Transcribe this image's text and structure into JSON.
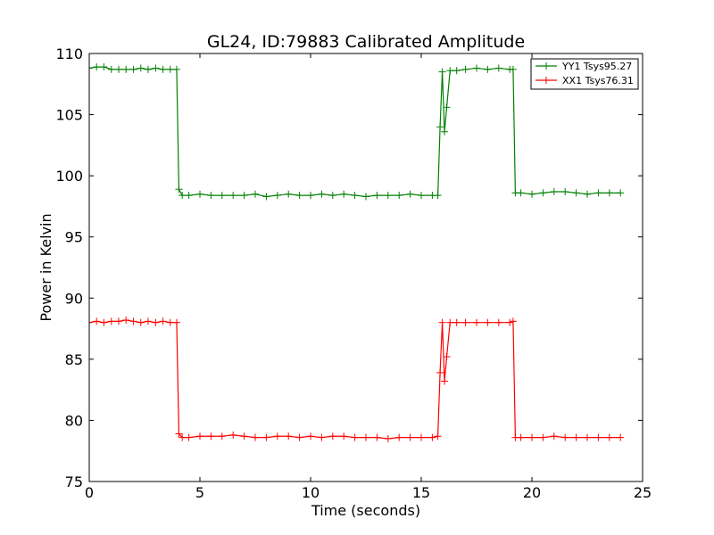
{
  "chart_data": {
    "type": "line",
    "title": "GL24, ID:79883 Calibrated Amplitude",
    "xlabel": "Time (seconds)",
    "ylabel": "Power in Kelvin",
    "xlim": [
      0,
      25
    ],
    "ylim": [
      75,
      110
    ],
    "xticks": [
      "0",
      "5",
      "10",
      "15",
      "20",
      "25"
    ],
    "yticks": [
      "75",
      "80",
      "85",
      "90",
      "95",
      "100",
      "105",
      "110"
    ],
    "grid": false,
    "legend_position": "top-right",
    "series": [
      {
        "name": "YY1 Tsys95.27",
        "color": "#008000",
        "marker": "+",
        "points": [
          [
            0.0,
            108.8
          ],
          [
            0.33,
            108.9
          ],
          [
            0.66,
            108.9
          ],
          [
            1.0,
            108.7
          ],
          [
            1.33,
            108.7
          ],
          [
            1.66,
            108.7
          ],
          [
            2.0,
            108.7
          ],
          [
            2.33,
            108.8
          ],
          [
            2.66,
            108.7
          ],
          [
            3.0,
            108.8
          ],
          [
            3.33,
            108.7
          ],
          [
            3.66,
            108.7
          ],
          [
            3.95,
            108.7
          ],
          [
            4.05,
            98.9
          ],
          [
            4.2,
            98.4
          ],
          [
            4.5,
            98.4
          ],
          [
            5.0,
            98.5
          ],
          [
            5.5,
            98.4
          ],
          [
            6.0,
            98.4
          ],
          [
            6.5,
            98.4
          ],
          [
            7.0,
            98.4
          ],
          [
            7.5,
            98.5
          ],
          [
            8.0,
            98.3
          ],
          [
            8.5,
            98.4
          ],
          [
            9.0,
            98.5
          ],
          [
            9.5,
            98.4
          ],
          [
            10.0,
            98.4
          ],
          [
            10.5,
            98.5
          ],
          [
            11.0,
            98.4
          ],
          [
            11.5,
            98.5
          ],
          [
            12.0,
            98.4
          ],
          [
            12.5,
            98.3
          ],
          [
            13.0,
            98.4
          ],
          [
            13.5,
            98.4
          ],
          [
            14.0,
            98.4
          ],
          [
            14.5,
            98.5
          ],
          [
            15.0,
            98.4
          ],
          [
            15.5,
            98.4
          ],
          [
            15.75,
            98.4
          ],
          [
            15.85,
            104.0
          ],
          [
            15.95,
            108.5
          ],
          [
            16.05,
            103.6
          ],
          [
            16.15,
            105.6
          ],
          [
            16.3,
            108.6
          ],
          [
            16.6,
            108.6
          ],
          [
            17.0,
            108.7
          ],
          [
            17.5,
            108.8
          ],
          [
            18.0,
            108.7
          ],
          [
            18.5,
            108.8
          ],
          [
            19.0,
            108.7
          ],
          [
            19.15,
            108.7
          ],
          [
            19.25,
            98.6
          ],
          [
            19.5,
            98.6
          ],
          [
            20.0,
            98.5
          ],
          [
            20.5,
            98.6
          ],
          [
            21.0,
            98.7
          ],
          [
            21.5,
            98.7
          ],
          [
            22.0,
            98.6
          ],
          [
            22.5,
            98.5
          ],
          [
            23.0,
            98.6
          ],
          [
            23.5,
            98.6
          ],
          [
            24.0,
            98.6
          ]
        ]
      },
      {
        "name": "XX1 Tsys76.31",
        "color": "#ff0000",
        "marker": "+",
        "points": [
          [
            0.0,
            88.0
          ],
          [
            0.33,
            88.1
          ],
          [
            0.66,
            88.0
          ],
          [
            1.0,
            88.1
          ],
          [
            1.33,
            88.1
          ],
          [
            1.66,
            88.2
          ],
          [
            2.0,
            88.1
          ],
          [
            2.33,
            88.0
          ],
          [
            2.66,
            88.1
          ],
          [
            3.0,
            88.0
          ],
          [
            3.33,
            88.1
          ],
          [
            3.66,
            88.0
          ],
          [
            3.95,
            88.0
          ],
          [
            4.05,
            78.9
          ],
          [
            4.2,
            78.6
          ],
          [
            4.5,
            78.6
          ],
          [
            5.0,
            78.7
          ],
          [
            5.5,
            78.7
          ],
          [
            6.0,
            78.7
          ],
          [
            6.5,
            78.8
          ],
          [
            7.0,
            78.7
          ],
          [
            7.5,
            78.6
          ],
          [
            8.0,
            78.6
          ],
          [
            8.5,
            78.7
          ],
          [
            9.0,
            78.7
          ],
          [
            9.5,
            78.6
          ],
          [
            10.0,
            78.7
          ],
          [
            10.5,
            78.6
          ],
          [
            11.0,
            78.7
          ],
          [
            11.5,
            78.7
          ],
          [
            12.0,
            78.6
          ],
          [
            12.5,
            78.6
          ],
          [
            13.0,
            78.6
          ],
          [
            13.5,
            78.5
          ],
          [
            14.0,
            78.6
          ],
          [
            14.5,
            78.6
          ],
          [
            15.0,
            78.6
          ],
          [
            15.5,
            78.6
          ],
          [
            15.75,
            78.7
          ],
          [
            15.85,
            83.9
          ],
          [
            15.95,
            88.0
          ],
          [
            16.05,
            83.2
          ],
          [
            16.15,
            85.2
          ],
          [
            16.3,
            88.0
          ],
          [
            16.6,
            88.0
          ],
          [
            17.0,
            88.0
          ],
          [
            17.5,
            88.0
          ],
          [
            18.0,
            88.0
          ],
          [
            18.5,
            88.0
          ],
          [
            19.0,
            88.0
          ],
          [
            19.15,
            88.1
          ],
          [
            19.25,
            78.6
          ],
          [
            19.5,
            78.6
          ],
          [
            20.0,
            78.6
          ],
          [
            20.5,
            78.6
          ],
          [
            21.0,
            78.7
          ],
          [
            21.5,
            78.6
          ],
          [
            22.0,
            78.6
          ],
          [
            22.5,
            78.6
          ],
          [
            23.0,
            78.6
          ],
          [
            23.5,
            78.6
          ],
          [
            24.0,
            78.6
          ]
        ]
      }
    ]
  }
}
